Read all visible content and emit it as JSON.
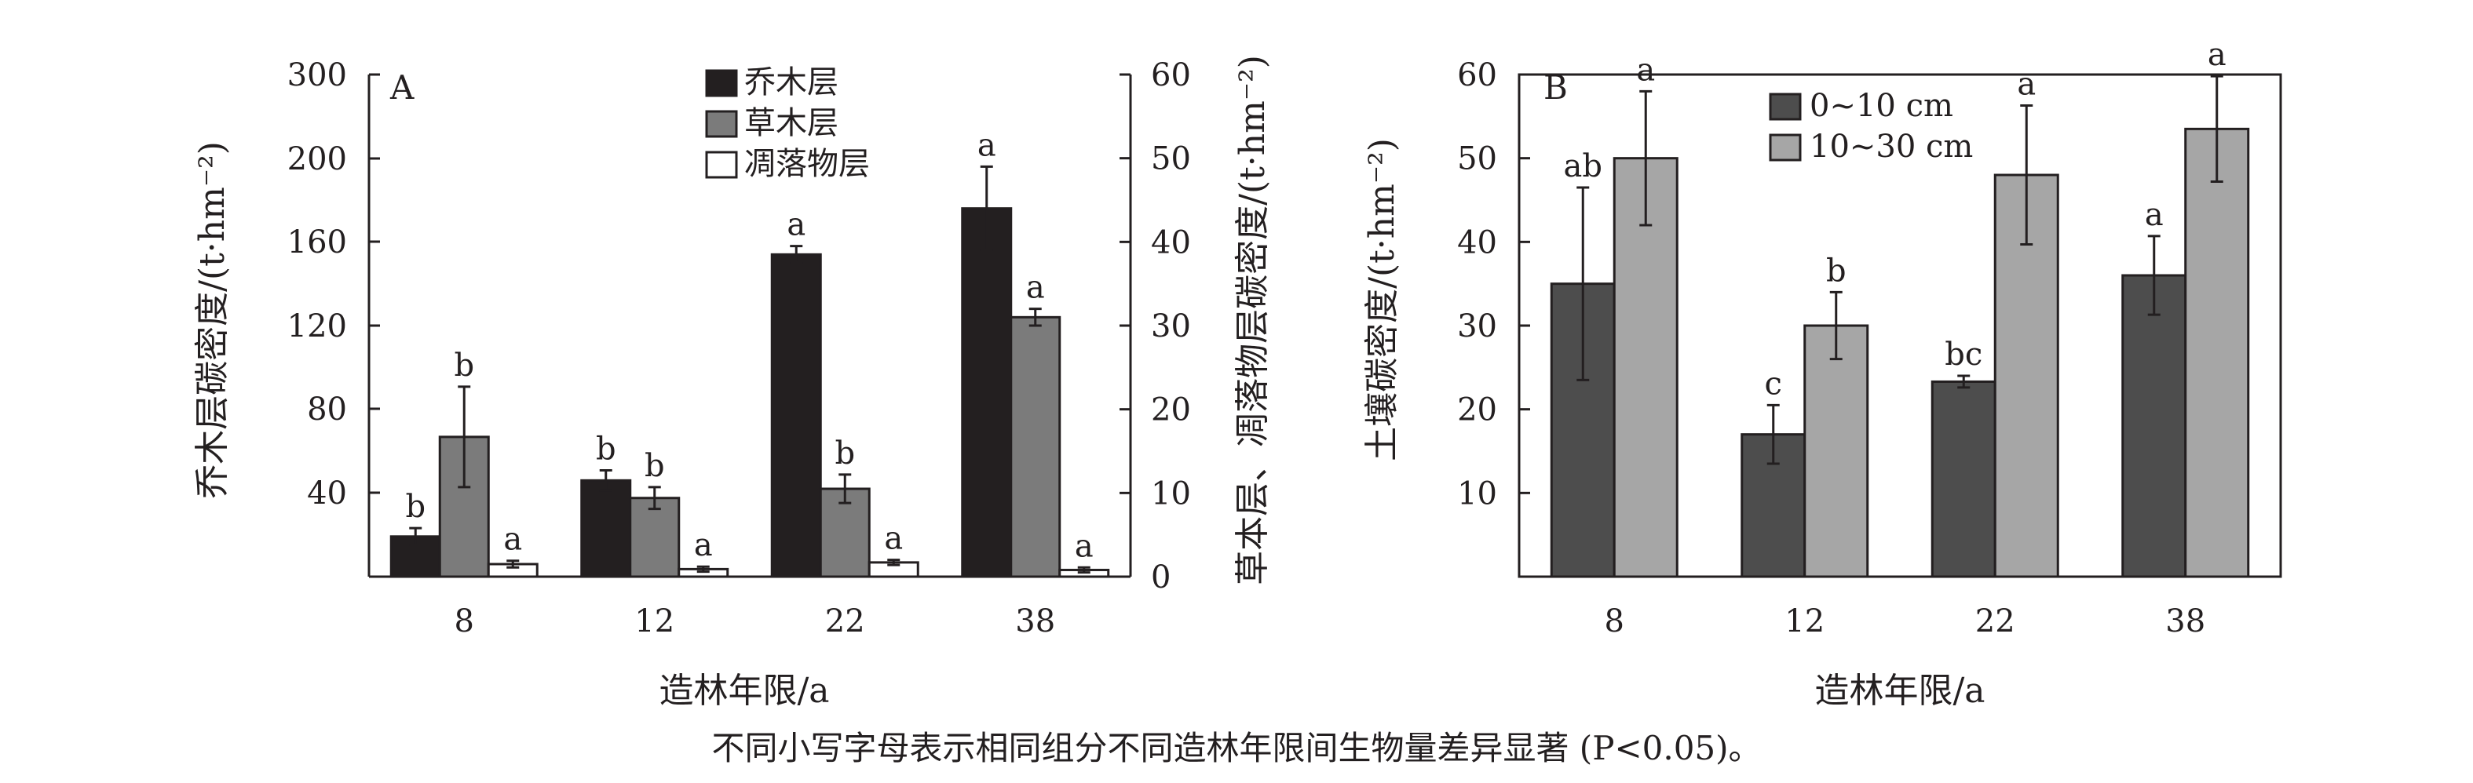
{
  "chart_data": [
    {
      "panel": "A",
      "type": "bar",
      "categories": [
        "8",
        "12",
        "22",
        "38"
      ],
      "xlabel": "造林年限/a",
      "ylabel_left": "乔木层碳密度/(t·hm⁻²)",
      "ylabel_right": "草本层、凋落物层碳密度/(t·hm⁻²)",
      "yticks_left": [
        "40",
        "80",
        "120",
        "160",
        "200",
        "300"
      ],
      "yticks_right": [
        "0",
        "10",
        "20",
        "30",
        "40",
        "50",
        "60"
      ],
      "ylim_right": [
        0,
        60
      ],
      "legend_position": "top",
      "series": [
        {
          "name": "乔木层",
          "axis": "left",
          "color": "#231f20",
          "values_right_scale": [
            4.8,
            11.5,
            38.5,
            44
          ],
          "err_right_scale": [
            1.0,
            1.2,
            1.0,
            5.0
          ],
          "labels": [
            "b",
            "b",
            "a",
            "a"
          ]
        },
        {
          "name": "草木层",
          "axis": "right",
          "color": "#7b7b7b",
          "values": [
            16.7,
            9.4,
            10.5,
            31
          ],
          "err": [
            6,
            1.3,
            1.7,
            1.0
          ],
          "labels": [
            "b",
            "b",
            "b",
            "a"
          ]
        },
        {
          "name": "凋落物层",
          "axis": "right",
          "color": "#ffffff",
          "values": [
            1.5,
            0.9,
            1.7,
            0.8
          ],
          "err": [
            0.4,
            0.3,
            0.3,
            0.3
          ],
          "labels": [
            "a",
            "a",
            "a",
            "a"
          ]
        }
      ]
    },
    {
      "panel": "B",
      "type": "bar",
      "categories": [
        "8",
        "12",
        "22",
        "38"
      ],
      "xlabel": "造林年限/a",
      "ylabel": "土壤碳密度/(t·hm⁻²)",
      "yticks": [
        "10",
        "20",
        "30",
        "40",
        "50",
        "60"
      ],
      "ylim": [
        0,
        60
      ],
      "legend_position": "top",
      "series": [
        {
          "name": "0~10 cm",
          "color": "#4d4d4d",
          "values": [
            35,
            17,
            23.3,
            36
          ],
          "err": [
            11.5,
            3.5,
            0.7,
            4.7
          ],
          "labels": [
            "ab",
            "c",
            "bc",
            "a"
          ]
        },
        {
          "name": "10~30 cm",
          "color": "#a6a6a6",
          "values": [
            50,
            30,
            48,
            53.5
          ],
          "err": [
            8.0,
            4.0,
            8.3,
            6.3
          ],
          "labels": [
            "a",
            "b",
            "a",
            "a"
          ]
        }
      ]
    }
  ],
  "panel_labels": {
    "a": "A",
    "b": "B"
  },
  "footnote": "不同小写字母表示相同组分不同造林年限间生物量差异显著 (P<0.05)。"
}
